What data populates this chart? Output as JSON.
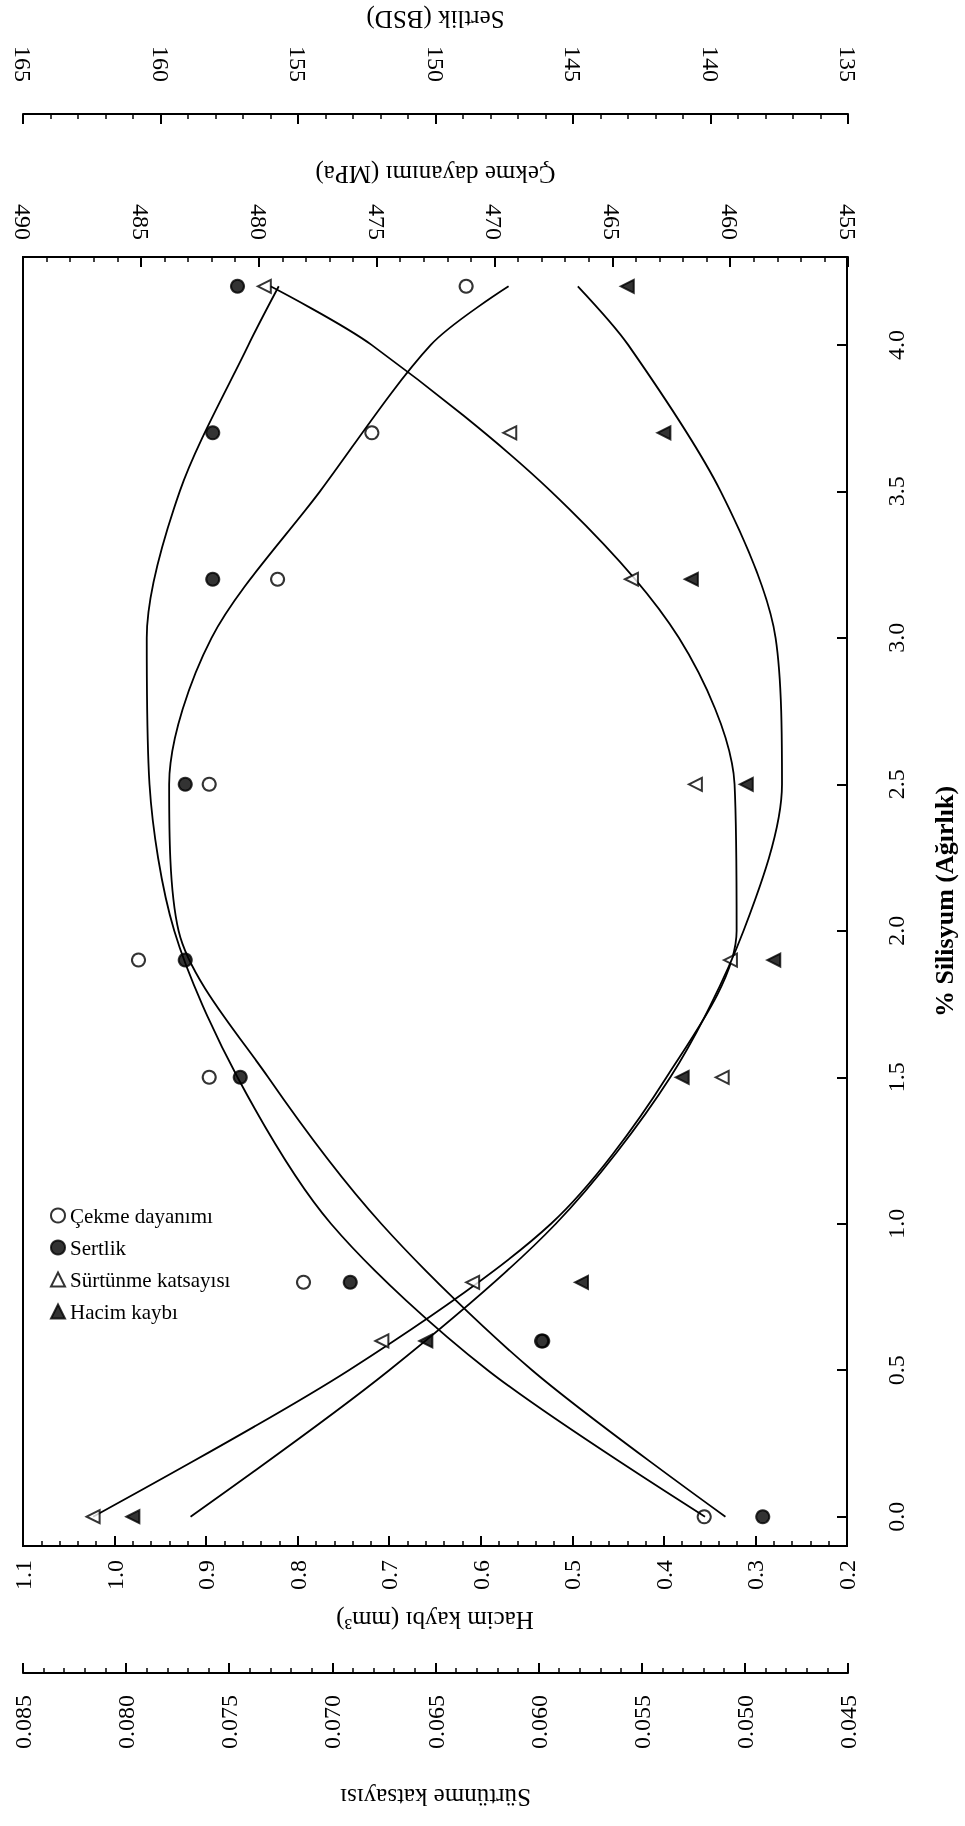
{
  "chart_data": [
    {
      "type": "scatter",
      "xlabel": "Çekme dayanımı (MPa)",
      "xlim": [
        490,
        455
      ],
      "xticks": [
        490,
        485,
        480,
        475,
        470,
        465,
        460,
        455
      ],
      "ylim": [
        -0.1,
        4.3
      ],
      "tick_labels": "x",
      "legend": "bottom left",
      "grid": false,
      "series": [
        {
          "name": "Çekme dayanımı",
          "marker": "circle",
          "color": "#ffffff",
          "x": [
            461.1,
            468.0,
            478.1,
            482.1,
            485.1,
            482.1,
            479.2,
            475.2,
            471.2
          ],
          "values": [
            0,
            0.6,
            0.8,
            1.5,
            1.9,
            2.5,
            3.2,
            3.7,
            4.2
          ]
        },
        {
          "type": "line",
          "marker": "none",
          "color": "#000000",
          "x": [
            460.2,
            468.4,
            474.8,
            479.6,
            483.4,
            483.8,
            482.0,
            477.4,
            472.7,
            469.4
          ],
          "values": [
            0,
            0.5,
            1,
            1.5,
            2,
            2.5,
            3,
            3.5,
            4,
            4.2
          ]
        }
      ]
    },
    {
      "type": "scatter",
      "xlabel": "Sertlik (BSD)",
      "xlim": [
        165,
        135
      ],
      "xticks": [
        165,
        160,
        155,
        150,
        145,
        140,
        135
      ],
      "ylim": [
        -0.1,
        4.3
      ],
      "tick_labels": "x",
      "legend": "bottom left",
      "grid": false,
      "series": [
        {
          "name": "Sertlik",
          "marker": "circle",
          "color": "#000000",
          "x": [
            138.1,
            146.1,
            153.1,
            157.1,
            159.1,
            159.1,
            158.1,
            158.1,
            157.2
          ],
          "values": [
            0,
            0.6,
            0.8,
            1.5,
            1.9,
            2.5,
            3.2,
            3.7,
            4.2
          ]
        },
        {
          "type": "line",
          "marker": "none",
          "color": "#000000",
          "x": [
            140.2,
            148.1,
            153.8,
            157.2,
            159.5,
            160.4,
            160.5,
            159.3,
            156.8,
            155.7
          ],
          "values": [
            0,
            0.5,
            1,
            1.5,
            2,
            2.5,
            3,
            3.5,
            4,
            4.2
          ]
        }
      ]
    },
    {
      "type": "scatter",
      "xlabel": "Sürtünme katsayısı",
      "xlim": [
        0.085,
        0.045
      ],
      "xticks": [
        0.085,
        {
          "value": 0.08,
          "label": "0.080"
        },
        0.075,
        {
          "value": 0.07,
          "label": "0.070"
        },
        0.065,
        {
          "value": 0.06,
          "label": "0.060"
        },
        0.055,
        {
          "value": 0.05,
          "label": "0.050"
        },
        0.045
      ],
      "ylim": [
        -0.1,
        4.3
      ],
      "tick_labels": "x",
      "legend": "bottom left",
      "grid": false,
      "series": [
        {
          "name": "Sürtünme katsayısı",
          "marker": "triangle",
          "color": "#ffffff",
          "x": [
            0.0816,
            0.0676,
            0.0632,
            0.0511,
            0.0507,
            0.0524,
            0.0555,
            0.0614,
            0.0733
          ],
          "values": [
            0,
            0.6,
            0.8,
            1.5,
            1.9,
            2.5,
            3.2,
            3.7,
            4.2
          ]
        },
        {
          "type": "line",
          "marker": "none",
          "color": "#000000",
          "x": [
            0.0816,
            0.0692,
            0.0594,
            0.0538,
            0.0504,
            0.0505,
            0.0532,
            0.0594,
            0.0681,
            0.073
          ],
          "values": [
            0,
            0.5,
            1,
            1.5,
            2,
            2.5,
            3,
            3.5,
            4,
            4.2
          ]
        }
      ]
    },
    {
      "type": "scatter",
      "xlabel": "Hacim kaybı (mm³)",
      "ylabel": "% Silisyum (Ağırlık)",
      "xlim": [
        1.1,
        0.2
      ],
      "xticks": [
        1.1,
        {
          "value": 1,
          "label": "1.0"
        },
        0.9,
        0.8,
        0.7,
        0.6,
        0.5,
        0.4,
        0.3,
        0.2
      ],
      "ylim": [
        -0.1,
        4.3
      ],
      "yticks": [
        {
          "value": 0,
          "label": "0.0"
        },
        0.5,
        {
          "value": 1,
          "label": "1.0"
        },
        1.5,
        {
          "value": 2,
          "label": "2.0"
        },
        2.5,
        {
          "value": 3,
          "label": "3.0"
        },
        3.5,
        {
          "value": 4,
          "label": "4.0"
        }
      ],
      "legend": "bottom left",
      "grid": false,
      "series": [
        {
          "name": "Hacim kaybı",
          "marker": "triangle",
          "color": "#000000",
          "x": [
            0.98,
            0.66,
            0.49,
            0.38,
            0.28,
            0.31,
            0.37,
            0.4,
            0.44
          ],
          "values": [
            0,
            0.6,
            0.8,
            1.5,
            1.9,
            2.5,
            3.2,
            3.7,
            4.2
          ]
        },
        {
          "type": "line",
          "marker": "none",
          "color": "#000000",
          "x": [
            0.917,
            0.7,
            0.518,
            0.393,
            0.313,
            0.271,
            0.278,
            0.338,
            0.439,
            0.494
          ],
          "values": [
            0,
            0.5,
            1,
            1.5,
            2,
            2.5,
            3,
            3.5,
            4,
            4.2
          ]
        }
      ]
    }
  ]
}
